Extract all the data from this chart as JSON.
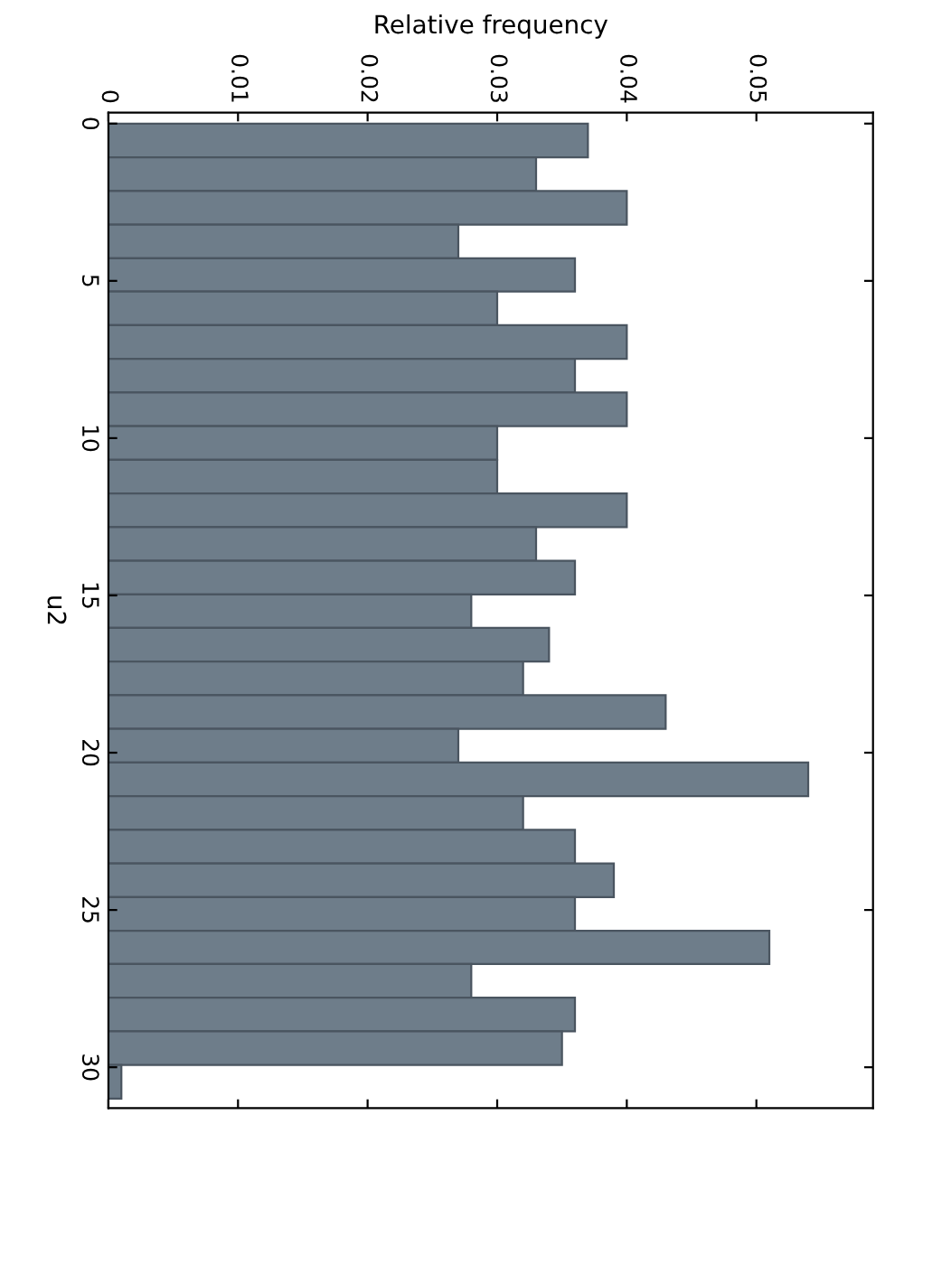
{
  "chart_data": {
    "type": "histogram",
    "orientation": "horizontal",
    "xlabel": "Relative frequency",
    "ylabel": "u2",
    "bins": [
      0,
      1.07,
      2.14,
      3.21,
      4.28,
      5.34,
      6.41,
      7.48,
      8.55,
      9.62,
      10.69,
      11.76,
      12.83,
      13.9,
      14.97,
      16.03,
      17.1,
      18.17,
      19.24,
      20.31,
      21.38,
      22.45,
      23.52,
      24.59,
      25.66,
      26.72,
      27.79,
      28.86,
      29.93,
      31.0
    ],
    "values": [
      0.037,
      0.033,
      0.04,
      0.027,
      0.036,
      0.03,
      0.04,
      0.036,
      0.04,
      0.03,
      0.03,
      0.04,
      0.033,
      0.036,
      0.028,
      0.034,
      0.032,
      0.043,
      0.027,
      0.054,
      0.032,
      0.036,
      0.039,
      0.036,
      0.051,
      0.028,
      0.036,
      0.035,
      0.001
    ],
    "color": "#6e7d8a",
    "xlim": [
      0,
      0.059
    ],
    "xticks": [
      0,
      0.01,
      0.02,
      0.03,
      0.04,
      0.05
    ],
    "ylim": [
      31.3,
      -0.35
    ],
    "yticks": [
      0,
      5,
      10,
      15,
      20,
      25,
      30
    ],
    "grid": false,
    "legend": false
  }
}
